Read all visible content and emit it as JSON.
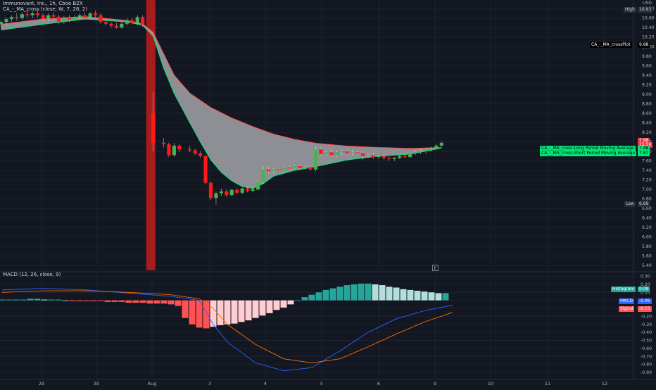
{
  "header": {
    "symbol_line": "Immunovant, Inc., 1h, Cboe BZX",
    "indicator_line": "CA_-_MA_cross (close, W, 7, 28, 2)",
    "currency": "USD"
  },
  "macd_panel": {
    "title": "MACD (12, 26, close, 9)"
  },
  "badges": {
    "high_label": "High",
    "high_value": "10.93",
    "plot_label": "CA_-_MA_crossPlot",
    "plot_value": "9.88",
    "last_price": "7.98",
    "countdown": "15:56",
    "long_ma_label": "CA_-_MA_cross:Long Period Moving Average",
    "long_ma_value": "7.88",
    "short_ma_label": "CA_-_MA_cross:Short Period Moving Average",
    "short_ma_value": "7.87",
    "low_label": "Low",
    "low_value": "6.69",
    "hist_label": "Histogram",
    "hist_value": "0.09",
    "macd_label": "MACD",
    "macd_value": "-0.06",
    "signal_label": "Signal",
    "signal_value": "-0.15"
  },
  "icons": {
    "event_icon": "E"
  },
  "colors": {
    "background": "#131722",
    "up": "#26a69a",
    "down": "#ef5350",
    "candle_up": "#4caf50",
    "candle_down": "#ff1a1a",
    "band_fill": "#a5a5a9",
    "long_ma": "#ff5252",
    "short_ma": "#00e676",
    "highlight": "#b71c1c",
    "macd_line": "#2962ff",
    "signal_line": "#ff6d00",
    "hist_pos_strong": "#26a69a",
    "hist_pos_weak": "#b2dfdb",
    "hist_neg_strong": "#ff5252",
    "hist_neg_weak": "#ffcdd2",
    "badge_green": "#00e676",
    "badge_red": "#f23645",
    "badge_blue": "#2962ff"
  },
  "chart_data": [
    {
      "type": "candlestick",
      "title": "Immunovant, Inc., 1h, Cboe BZX",
      "x_tick_labels": [
        "29",
        "30",
        "Aug",
        "3",
        "4",
        "5",
        "6",
        "9",
        "10",
        "11",
        "12"
      ],
      "y_ticks": [
        5.4,
        5.6,
        5.8,
        6.0,
        6.2,
        6.4,
        6.6,
        6.8,
        7.0,
        7.2,
        7.4,
        7.6,
        7.8,
        8.0,
        8.2,
        8.4,
        8.6,
        8.8,
        9.0,
        9.2,
        9.4,
        9.6,
        9.8,
        10.0,
        10.2,
        10.4,
        10.6,
        10.8
      ],
      "ylim": [
        5.3,
        10.98
      ],
      "grid": true,
      "highlight_bar_x": 28.5,
      "candles": [
        {
          "x": 0,
          "o": 10.47,
          "h": 10.56,
          "l": 10.4,
          "c": 10.52
        },
        {
          "x": 1,
          "o": 10.52,
          "h": 10.62,
          "l": 10.45,
          "c": 10.58
        },
        {
          "x": 2,
          "o": 10.58,
          "h": 10.66,
          "l": 10.52,
          "c": 10.62
        },
        {
          "x": 3,
          "o": 10.62,
          "h": 10.7,
          "l": 10.55,
          "c": 10.6
        },
        {
          "x": 4,
          "o": 10.6,
          "h": 10.72,
          "l": 10.56,
          "c": 10.68
        },
        {
          "x": 5,
          "o": 10.68,
          "h": 10.76,
          "l": 10.6,
          "c": 10.66
        },
        {
          "x": 6,
          "o": 10.66,
          "h": 10.74,
          "l": 10.6,
          "c": 10.7
        },
        {
          "x": 7,
          "o": 10.7,
          "h": 10.76,
          "l": 10.62,
          "c": 10.66
        },
        {
          "x": 8,
          "o": 10.66,
          "h": 10.7,
          "l": 10.55,
          "c": 10.58
        },
        {
          "x": 9,
          "o": 10.58,
          "h": 10.7,
          "l": 10.54,
          "c": 10.66
        },
        {
          "x": 10,
          "o": 10.66,
          "h": 10.72,
          "l": 10.6,
          "c": 10.63
        },
        {
          "x": 11,
          "o": 10.63,
          "h": 10.67,
          "l": 10.48,
          "c": 10.52
        },
        {
          "x": 12,
          "o": 10.52,
          "h": 10.64,
          "l": 10.48,
          "c": 10.6
        },
        {
          "x": 13,
          "o": 10.6,
          "h": 10.66,
          "l": 10.52,
          "c": 10.56
        },
        {
          "x": 14,
          "o": 10.56,
          "h": 10.66,
          "l": 10.54,
          "c": 10.62
        },
        {
          "x": 15,
          "o": 10.62,
          "h": 10.7,
          "l": 10.58,
          "c": 10.66
        },
        {
          "x": 16,
          "o": 10.66,
          "h": 10.72,
          "l": 10.58,
          "c": 10.61
        },
        {
          "x": 17,
          "o": 10.61,
          "h": 10.72,
          "l": 10.58,
          "c": 10.7
        },
        {
          "x": 18,
          "o": 10.7,
          "h": 10.76,
          "l": 10.62,
          "c": 10.66
        },
        {
          "x": 19,
          "o": 10.66,
          "h": 10.7,
          "l": 10.48,
          "c": 10.52
        },
        {
          "x": 20,
          "o": 10.52,
          "h": 10.58,
          "l": 10.44,
          "c": 10.48
        },
        {
          "x": 21,
          "o": 10.48,
          "h": 10.52,
          "l": 10.4,
          "c": 10.44
        },
        {
          "x": 22,
          "o": 10.44,
          "h": 10.5,
          "l": 10.38,
          "c": 10.4
        },
        {
          "x": 23,
          "o": 10.4,
          "h": 10.52,
          "l": 10.38,
          "c": 10.48
        },
        {
          "x": 24,
          "o": 10.48,
          "h": 10.6,
          "l": 10.44,
          "c": 10.56
        },
        {
          "x": 25,
          "o": 10.56,
          "h": 10.6,
          "l": 10.46,
          "c": 10.5
        },
        {
          "x": 26,
          "o": 10.5,
          "h": 10.66,
          "l": 10.46,
          "c": 10.62
        },
        {
          "x": 27,
          "o": 10.62,
          "h": 10.66,
          "l": 10.42,
          "c": 10.46
        },
        {
          "x": 29,
          "o": 8.6,
          "h": 9.05,
          "l": 7.8,
          "c": 7.98
        },
        {
          "x": 31,
          "o": 7.98,
          "h": 8.08,
          "l": 7.88,
          "c": 7.95
        },
        {
          "x": 32,
          "o": 7.95,
          "h": 7.98,
          "l": 7.68,
          "c": 7.72
        },
        {
          "x": 33,
          "o": 7.72,
          "h": 7.98,
          "l": 7.68,
          "c": 7.92
        },
        {
          "x": 34,
          "o": 7.92,
          "h": 7.95,
          "l": 7.78,
          "c": 7.84
        },
        {
          "x": 36,
          "o": 7.84,
          "h": 7.92,
          "l": 7.78,
          "c": 7.82
        },
        {
          "x": 37,
          "o": 7.82,
          "h": 7.86,
          "l": 7.72,
          "c": 7.76
        },
        {
          "x": 38,
          "o": 7.76,
          "h": 7.8,
          "l": 7.66,
          "c": 7.7
        },
        {
          "x": 39,
          "o": 7.7,
          "h": 7.72,
          "l": 7.1,
          "c": 7.14
        },
        {
          "x": 40,
          "o": 7.14,
          "h": 7.16,
          "l": 6.78,
          "c": 6.82
        },
        {
          "x": 41,
          "o": 6.82,
          "h": 6.96,
          "l": 6.68,
          "c": 6.92
        },
        {
          "x": 42,
          "o": 6.92,
          "h": 7.02,
          "l": 6.86,
          "c": 6.96
        },
        {
          "x": 43,
          "o": 6.96,
          "h": 7.0,
          "l": 6.84,
          "c": 6.88
        },
        {
          "x": 44,
          "o": 6.88,
          "h": 7.02,
          "l": 6.86,
          "c": 6.99
        },
        {
          "x": 45,
          "o": 6.99,
          "h": 7.02,
          "l": 6.9,
          "c": 6.93
        },
        {
          "x": 46,
          "o": 6.93,
          "h": 7.04,
          "l": 6.9,
          "c": 7.02
        },
        {
          "x": 47,
          "o": 7.02,
          "h": 7.06,
          "l": 6.94,
          "c": 6.97
        },
        {
          "x": 48,
          "o": 6.97,
          "h": 7.04,
          "l": 6.94,
          "c": 7.0
        },
        {
          "x": 49,
          "o": 7.0,
          "h": 7.18,
          "l": 6.98,
          "c": 7.15
        },
        {
          "x": 50,
          "o": 7.15,
          "h": 7.48,
          "l": 7.12,
          "c": 7.42
        },
        {
          "x": 51,
          "o": 7.42,
          "h": 7.48,
          "l": 7.35,
          "c": 7.38
        },
        {
          "x": 52,
          "o": 7.38,
          "h": 7.45,
          "l": 7.33,
          "c": 7.42
        },
        {
          "x": 53,
          "o": 7.42,
          "h": 7.46,
          "l": 7.38,
          "c": 7.4
        },
        {
          "x": 54,
          "o": 7.4,
          "h": 7.5,
          "l": 7.38,
          "c": 7.46
        },
        {
          "x": 55,
          "o": 7.46,
          "h": 7.5,
          "l": 7.42,
          "c": 7.44
        },
        {
          "x": 56,
          "o": 7.44,
          "h": 7.52,
          "l": 7.42,
          "c": 7.49
        },
        {
          "x": 57,
          "o": 7.49,
          "h": 7.52,
          "l": 7.42,
          "c": 7.45
        },
        {
          "x": 58,
          "o": 7.45,
          "h": 7.5,
          "l": 7.42,
          "c": 7.47
        },
        {
          "x": 59,
          "o": 7.47,
          "h": 7.5,
          "l": 7.4,
          "c": 7.42
        },
        {
          "x": 60,
          "o": 7.42,
          "h": 7.9,
          "l": 7.38,
          "c": 7.84
        },
        {
          "x": 61,
          "o": 7.84,
          "h": 7.88,
          "l": 7.7,
          "c": 7.74
        },
        {
          "x": 62,
          "o": 7.74,
          "h": 7.82,
          "l": 7.7,
          "c": 7.78
        },
        {
          "x": 63,
          "o": 7.78,
          "h": 7.84,
          "l": 7.68,
          "c": 7.72
        },
        {
          "x": 64,
          "o": 7.72,
          "h": 7.82,
          "l": 7.68,
          "c": 7.78
        },
        {
          "x": 65,
          "o": 7.78,
          "h": 7.84,
          "l": 7.72,
          "c": 7.8
        },
        {
          "x": 66,
          "o": 7.8,
          "h": 7.84,
          "l": 7.74,
          "c": 7.76
        },
        {
          "x": 67,
          "o": 7.76,
          "h": 7.82,
          "l": 7.72,
          "c": 7.78
        },
        {
          "x": 68,
          "o": 7.78,
          "h": 7.82,
          "l": 7.74,
          "c": 7.76
        },
        {
          "x": 69,
          "o": 7.76,
          "h": 7.8,
          "l": 7.62,
          "c": 7.7
        },
        {
          "x": 70,
          "o": 7.7,
          "h": 7.76,
          "l": 7.66,
          "c": 7.72
        },
        {
          "x": 71,
          "o": 7.72,
          "h": 7.76,
          "l": 7.64,
          "c": 7.68
        },
        {
          "x": 72,
          "o": 7.68,
          "h": 7.72,
          "l": 7.64,
          "c": 7.7
        },
        {
          "x": 73,
          "o": 7.7,
          "h": 7.74,
          "l": 7.62,
          "c": 7.66
        },
        {
          "x": 74,
          "o": 7.66,
          "h": 7.7,
          "l": 7.6,
          "c": 7.64
        },
        {
          "x": 75,
          "o": 7.64,
          "h": 7.68,
          "l": 7.6,
          "c": 7.66
        },
        {
          "x": 76,
          "o": 7.66,
          "h": 7.72,
          "l": 7.64,
          "c": 7.7
        },
        {
          "x": 77,
          "o": 7.7,
          "h": 7.74,
          "l": 7.66,
          "c": 7.68
        },
        {
          "x": 78,
          "o": 7.68,
          "h": 7.78,
          "l": 7.66,
          "c": 7.76
        },
        {
          "x": 79,
          "o": 7.76,
          "h": 7.82,
          "l": 7.72,
          "c": 7.78
        },
        {
          "x": 80,
          "o": 7.78,
          "h": 7.84,
          "l": 7.74,
          "c": 7.8
        },
        {
          "x": 81,
          "o": 7.8,
          "h": 7.86,
          "l": 7.76,
          "c": 7.84
        },
        {
          "x": 82,
          "o": 7.84,
          "h": 7.9,
          "l": 7.8,
          "c": 7.86
        },
        {
          "x": 83,
          "o": 7.86,
          "h": 7.96,
          "l": 7.84,
          "c": 7.92
        },
        {
          "x": 84,
          "o": 7.92,
          "h": 8.0,
          "l": 7.9,
          "c": 7.98
        }
      ],
      "series": [
        {
          "name": "CA_-_MA_cross:Long Period Moving Average",
          "x": [
            0,
            8,
            16,
            24,
            27,
            29,
            31,
            33,
            36,
            40,
            44,
            48,
            52,
            56,
            60,
            66,
            72,
            78,
            84
          ],
          "y": [
            10.47,
            10.58,
            10.63,
            10.55,
            10.48,
            10.3,
            9.85,
            9.4,
            9.02,
            8.72,
            8.5,
            8.32,
            8.16,
            8.05,
            7.97,
            7.91,
            7.88,
            7.86,
            7.88
          ]
        },
        {
          "name": "CA_-_MA_cross:Short Period Moving Average",
          "x": [
            0,
            8,
            16,
            24,
            27,
            29,
            31,
            33,
            36,
            38,
            40,
            42,
            44,
            46,
            48,
            50,
            52,
            56,
            60,
            66,
            72,
            78,
            84
          ],
          "y": [
            10.35,
            10.47,
            10.58,
            10.52,
            10.45,
            10.22,
            9.55,
            9.02,
            8.4,
            8.0,
            7.62,
            7.36,
            7.18,
            7.06,
            7.02,
            7.12,
            7.28,
            7.4,
            7.48,
            7.62,
            7.7,
            7.74,
            7.87
          ]
        }
      ]
    },
    {
      "type": "bar",
      "title": "MACD (12, 26, close, 9)",
      "y_ticks": [
        0.3,
        0.2,
        0.1,
        0.0,
        -0.1,
        -0.2,
        -0.3,
        -0.4,
        -0.5,
        -0.6,
        -0.7,
        -0.8,
        -0.9
      ],
      "ylim": [
        -0.97,
        0.34
      ],
      "histogram": [
        0.01,
        0.01,
        0.01,
        0.01,
        0.02,
        0.02,
        0.01,
        0.01,
        0.01,
        0.0,
        -0.01,
        -0.01,
        -0.01,
        -0.01,
        -0.01,
        -0.02,
        -0.02,
        -0.02,
        -0.03,
        -0.03,
        -0.03,
        -0.04,
        -0.04,
        -0.04,
        -0.05,
        -0.07,
        -0.22,
        -0.3,
        -0.34,
        -0.35,
        -0.33,
        -0.31,
        -0.3,
        -0.29,
        -0.27,
        -0.25,
        -0.22,
        -0.19,
        -0.16,
        -0.12,
        -0.09,
        -0.05,
        0.0,
        0.04,
        0.07,
        0.1,
        0.13,
        0.15,
        0.17,
        0.19,
        0.2,
        0.21,
        0.21,
        0.2,
        0.19,
        0.17,
        0.16,
        0.14,
        0.13,
        0.12,
        0.11,
        0.1,
        0.09,
        0.09
      ],
      "series": [
        {
          "name": "MACD",
          "x": [
            0,
            6,
            12,
            18,
            24,
            28,
            30,
            32,
            36,
            40,
            44,
            48,
            52,
            56,
            60,
            64
          ],
          "y": [
            0.13,
            0.15,
            0.13,
            0.09,
            0.05,
            0.0,
            -0.3,
            -0.52,
            -0.78,
            -0.88,
            -0.84,
            -0.63,
            -0.4,
            -0.23,
            -0.13,
            -0.06
          ]
        },
        {
          "name": "Signal",
          "x": [
            0,
            6,
            12,
            18,
            24,
            28,
            30,
            32,
            36,
            40,
            44,
            48,
            52,
            56,
            60,
            64
          ],
          "y": [
            0.1,
            0.12,
            0.12,
            0.1,
            0.07,
            0.02,
            -0.1,
            -0.3,
            -0.55,
            -0.73,
            -0.78,
            -0.73,
            -0.58,
            -0.42,
            -0.27,
            -0.15
          ]
        }
      ]
    }
  ]
}
